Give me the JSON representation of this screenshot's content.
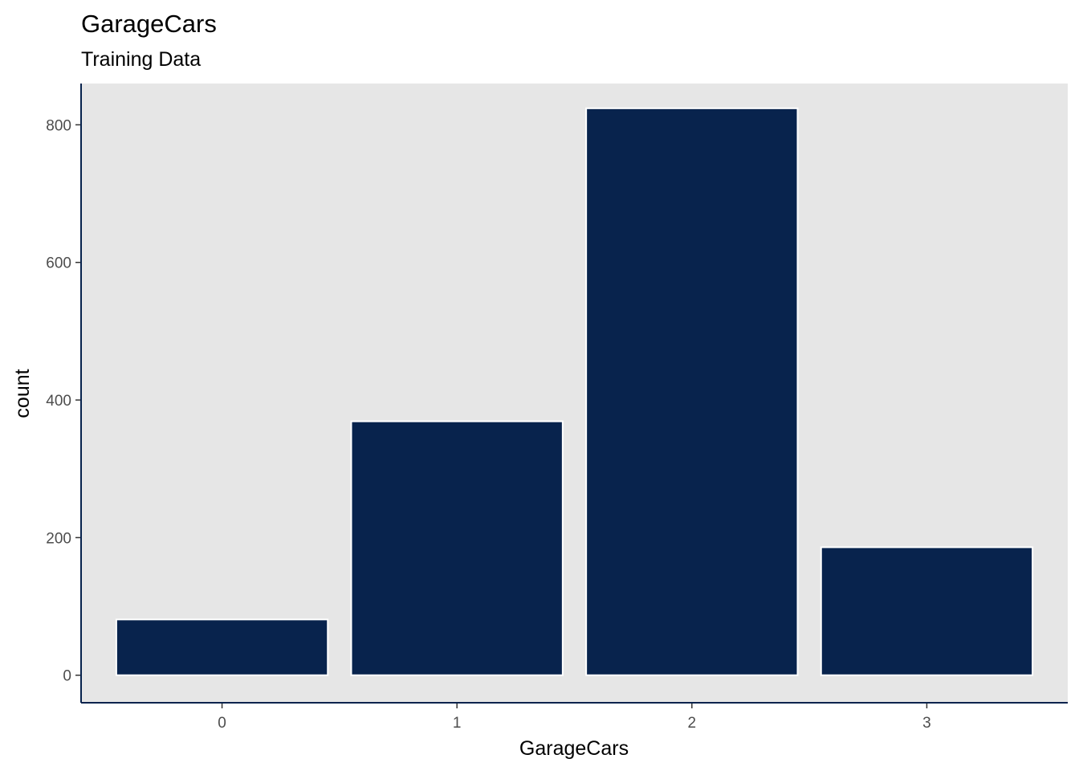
{
  "chart_data": {
    "type": "bar",
    "title": "GarageCars",
    "subtitle": "Training Data",
    "xlabel": "GarageCars",
    "ylabel": "count",
    "categories": [
      "0",
      "1",
      "2",
      "3"
    ],
    "values": [
      81,
      369,
      824,
      186
    ],
    "ylim": [
      -40,
      860
    ],
    "yticks": [
      0,
      200,
      400,
      600,
      800
    ],
    "grid": false,
    "legend": "none",
    "colors": {
      "bar_fill": "#08234D",
      "bar_stroke": "#ffffff",
      "panel": "#E6E6E6",
      "axis_line": "#08234D"
    }
  }
}
